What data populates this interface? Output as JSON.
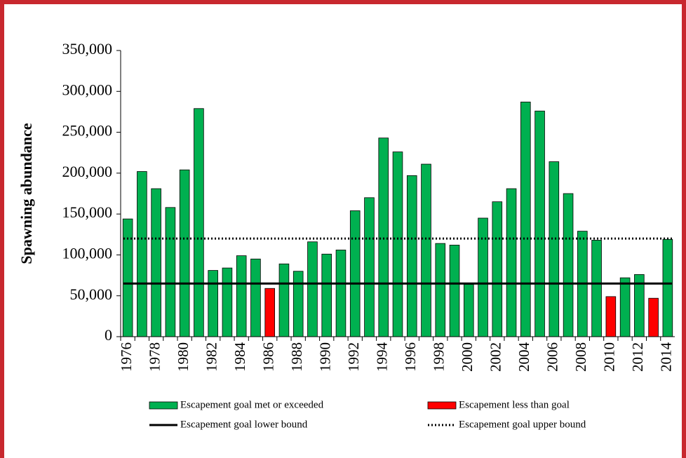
{
  "chart_data": {
    "type": "bar",
    "y_label": "Spawning abundance",
    "categories": [
      "1976",
      null,
      "1978",
      null,
      "1980",
      null,
      "1982",
      null,
      "1984",
      null,
      "1986",
      null,
      "1988",
      null,
      "1990",
      null,
      "1992",
      null,
      "1994",
      null,
      "1996",
      null,
      "1998",
      null,
      "2000",
      null,
      "2002",
      null,
      "2004",
      null,
      "2006",
      null,
      "2008",
      null,
      "2010",
      null,
      "2012",
      null,
      "2014"
    ],
    "series": [
      {
        "name": "Escapement goal met or exceeded",
        "color": "#00b050",
        "values": [
          144000,
          202000,
          181000,
          158000,
          204000,
          279000,
          81000,
          84000,
          99000,
          95000,
          null,
          89000,
          80000,
          116000,
          101000,
          106000,
          154000,
          170000,
          243000,
          226000,
          197000,
          211000,
          114000,
          112000,
          64000,
          145000,
          165000,
          181000,
          287000,
          276000,
          214000,
          175000,
          129000,
          118000,
          null,
          72000,
          76000,
          null,
          119000
        ]
      },
      {
        "name": "Escapement less than goal",
        "color": "#ff0000",
        "values": [
          null,
          null,
          null,
          null,
          null,
          null,
          null,
          null,
          null,
          null,
          59000,
          null,
          null,
          null,
          null,
          null,
          null,
          null,
          null,
          null,
          null,
          null,
          null,
          null,
          null,
          null,
          null,
          null,
          null,
          null,
          null,
          null,
          null,
          null,
          49000,
          null,
          null,
          47000,
          null
        ]
      }
    ],
    "lines": [
      {
        "name": "Escapement goal lower bound",
        "value": 65000,
        "color": "#000000",
        "dash": "solid"
      },
      {
        "name": "Escapement goal upper bound",
        "value": 120000,
        "color": "#000000",
        "dash": "dotted"
      }
    ],
    "ylim": [
      0,
      350000
    ],
    "yticks": [
      0,
      {
        "value": 50000,
        "label": "50,000"
      },
      {
        "value": 100000,
        "label": "100,000"
      },
      {
        "value": 150000,
        "label": "150,000"
      },
      {
        "value": 200000,
        "label": "200,000"
      },
      {
        "value": 250000,
        "label": "250,000"
      },
      {
        "value": 300000,
        "label": "300,000"
      },
      {
        "value": 350000,
        "label": "350,000"
      }
    ]
  }
}
